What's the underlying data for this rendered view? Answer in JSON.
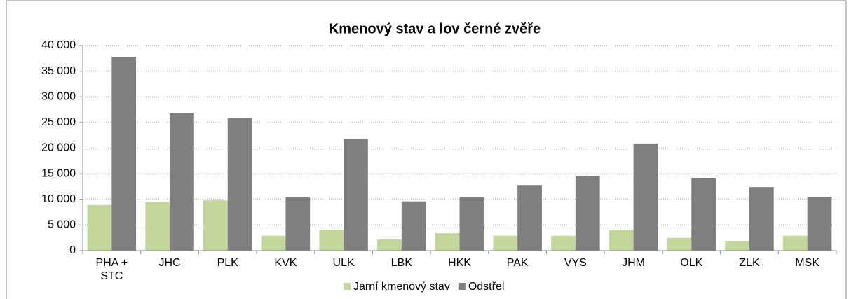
{
  "chart_data": {
    "type": "bar",
    "title": "Kmenový stav a lov černé zvěře",
    "categories": [
      "PHA + STC",
      "JHC",
      "PLK",
      "KVK",
      "ULK",
      "LBK",
      "HKK",
      "PAK",
      "VYS",
      "JHM",
      "OLK",
      "ZLK",
      "MSK"
    ],
    "series": [
      {
        "name": "Jarní kmenový stav",
        "color": "#c3d69b",
        "values": [
          8900,
          9500,
          9800,
          2900,
          4100,
          2200,
          3400,
          2900,
          2900,
          4000,
          2500,
          1900,
          2900
        ]
      },
      {
        "name": "Odstřel",
        "color": "#7f7f7f",
        "values": [
          37800,
          26800,
          25900,
          10400,
          21800,
          9600,
          10400,
          12800,
          14500,
          20900,
          14200,
          12400,
          10500
        ]
      }
    ],
    "ylim": [
      0,
      40000
    ],
    "yticks": [
      0,
      {
        "value": 5000,
        "label": "5 000"
      },
      {
        "value": 10000,
        "label": "10 000"
      },
      {
        "value": 15000,
        "label": "15 000"
      },
      {
        "value": 20000,
        "label": "20 000"
      },
      {
        "value": 25000,
        "label": "25 000"
      },
      {
        "value": 30000,
        "label": "30 000"
      },
      {
        "value": 35000,
        "label": "35 000"
      },
      {
        "value": 40000,
        "label": "40 000"
      }
    ],
    "grid": true,
    "legend": "bottom"
  }
}
